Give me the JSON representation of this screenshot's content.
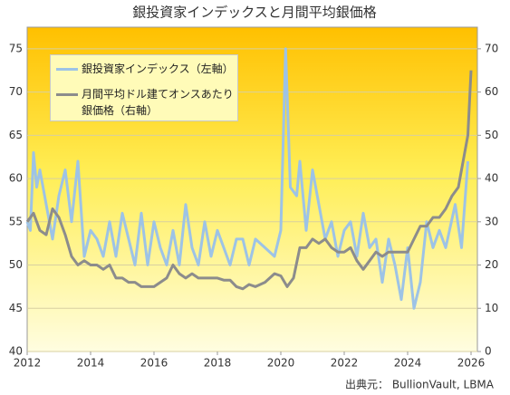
{
  "chart_data": {
    "type": "line",
    "title": "銀投資家インデックスと月間平均銀価格",
    "source": "出典元： BullionVault, LBMA",
    "xlim": [
      2012,
      2026.2
    ],
    "xticks": [
      2012,
      2014,
      2016,
      2018,
      2020,
      2022,
      2024,
      2026
    ],
    "ylim": [
      40,
      77.5
    ],
    "yticks": [
      40,
      45,
      50,
      55,
      60,
      65,
      70,
      75
    ],
    "y2lim": [
      0,
      75
    ],
    "y2ticks": [
      0,
      10,
      20,
      30,
      40,
      50,
      60,
      70
    ],
    "grid": true,
    "legend": "upper left",
    "series": [
      {
        "name": "銀投資家インデックス（左軸）",
        "color": "#9dc3e6",
        "axis": "y",
        "x": [
          2012.0,
          2012.1,
          2012.2,
          2012.3,
          2012.4,
          2012.6,
          2012.8,
          2013.0,
          2013.2,
          2013.4,
          2013.6,
          2013.8,
          2014.0,
          2014.2,
          2014.4,
          2014.6,
          2014.8,
          2015.0,
          2015.2,
          2015.4,
          2015.6,
          2015.8,
          2016.0,
          2016.2,
          2016.4,
          2016.6,
          2016.8,
          2017.0,
          2017.2,
          2017.4,
          2017.6,
          2017.8,
          2018.0,
          2018.2,
          2018.4,
          2018.6,
          2018.8,
          2019.0,
          2019.2,
          2019.5,
          2019.8,
          2020.0,
          2020.15,
          2020.3,
          2020.5,
          2020.6,
          2020.8,
          2021.0,
          2021.2,
          2021.4,
          2021.6,
          2021.8,
          2022.0,
          2022.2,
          2022.4,
          2022.6,
          2022.8,
          2023.0,
          2023.2,
          2023.4,
          2023.6,
          2023.8,
          2024.0,
          2024.2,
          2024.4,
          2024.6,
          2024.8,
          2025.0,
          2025.2,
          2025.5,
          2025.7,
          2025.9
        ],
        "values": [
          55,
          54,
          63,
          59,
          61,
          57,
          53,
          58,
          61,
          55,
          62,
          51,
          54,
          53,
          51,
          55,
          51,
          56,
          53,
          50,
          56,
          50,
          55,
          52,
          50,
          54,
          50,
          57,
          52,
          50,
          55,
          51,
          54,
          52,
          50,
          53,
          53,
          50,
          53,
          52,
          51,
          54,
          75,
          59,
          58,
          62,
          54,
          61,
          57,
          53,
          55,
          51,
          54,
          55,
          51,
          56,
          52,
          53,
          48,
          53,
          50,
          46,
          52,
          45,
          48,
          55,
          52,
          54,
          52,
          57,
          52,
          62
        ]
      },
      {
        "name": "月間平均ドル建てオンスあたり銀価格（右軸）",
        "color": "#8c8c8c",
        "axis": "y2",
        "x": [
          2012.0,
          2012.2,
          2012.4,
          2012.6,
          2012.8,
          2013.0,
          2013.2,
          2013.4,
          2013.6,
          2013.8,
          2014.0,
          2014.2,
          2014.4,
          2014.6,
          2014.8,
          2015.0,
          2015.2,
          2015.4,
          2015.6,
          2015.8,
          2016.0,
          2016.2,
          2016.4,
          2016.6,
          2016.8,
          2017.0,
          2017.2,
          2017.4,
          2017.6,
          2017.8,
          2018.0,
          2018.2,
          2018.4,
          2018.6,
          2018.8,
          2019.0,
          2019.2,
          2019.5,
          2019.8,
          2020.0,
          2020.2,
          2020.4,
          2020.6,
          2020.8,
          2021.0,
          2021.2,
          2021.4,
          2021.6,
          2021.8,
          2022.0,
          2022.2,
          2022.4,
          2022.6,
          2022.8,
          2023.0,
          2023.2,
          2023.4,
          2023.6,
          2023.8,
          2024.0,
          2024.2,
          2024.4,
          2024.6,
          2024.8,
          2025.0,
          2025.2,
          2025.4,
          2025.6,
          2025.8,
          2025.9,
          2026.0
        ],
        "values": [
          30,
          32,
          28,
          27,
          33,
          31,
          27,
          22,
          20,
          21,
          20,
          20,
          19,
          20,
          17,
          17,
          16,
          16,
          15,
          15,
          15,
          16,
          17,
          20,
          18,
          17,
          18,
          17,
          17,
          17,
          17,
          16.5,
          16.5,
          15,
          14.5,
          15.5,
          15,
          16,
          18,
          17.5,
          15,
          17,
          24,
          24,
          26,
          25,
          26,
          24,
          23,
          23,
          24,
          21,
          19,
          21,
          23,
          22,
          23,
          23,
          23,
          23,
          26,
          29,
          29,
          31,
          31,
          33,
          36,
          38,
          46,
          50,
          65
        ]
      }
    ]
  }
}
